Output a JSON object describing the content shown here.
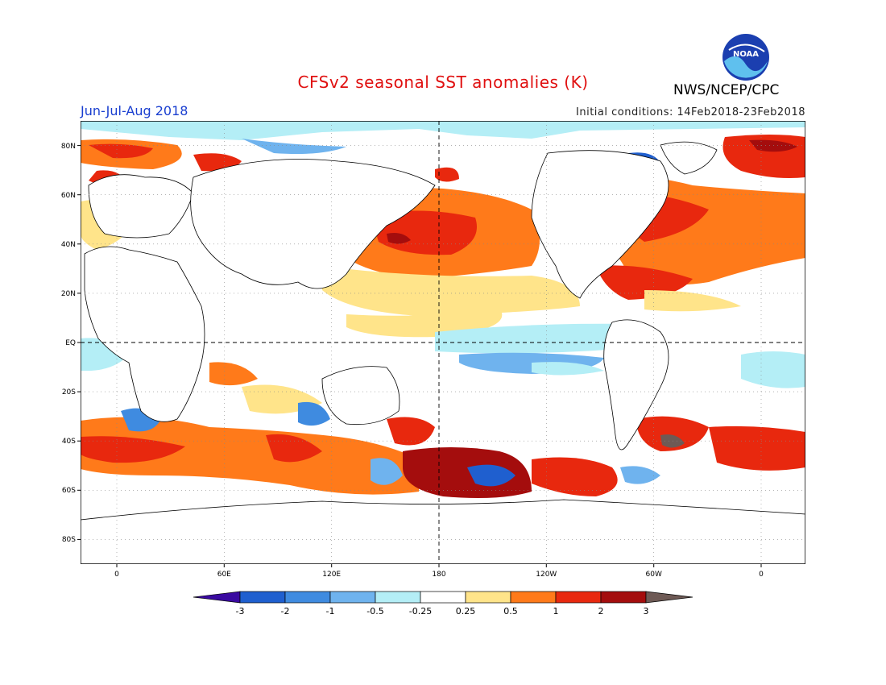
{
  "title": "CFSv2 seasonal SST anomalies (K)",
  "season": "Jun-Jul-Aug 2018",
  "initial_conditions": "Initial conditions: 14Feb2018-23Feb2018",
  "agency": "NWS/NCEP/CPC",
  "logo_text": "NOAA",
  "lat_labels": [
    "80N",
    "60N",
    "40N",
    "20N",
    "EQ",
    "20S",
    "40S",
    "60S",
    "80S"
  ],
  "lon_labels": [
    "0",
    "60E",
    "120E",
    "180",
    "120W",
    "60W",
    "0"
  ],
  "colorbar": {
    "ticks": [
      "-3",
      "-2",
      "-1",
      "-0.5",
      "-0.25",
      "0.25",
      "0.5",
      "1",
      "2",
      "3"
    ],
    "colors": [
      "#3a0aa0",
      "#1f5fcf",
      "#3f8be0",
      "#6fb3ee",
      "#b4eef6",
      "#ffffff",
      "#ffe48a",
      "#ff7a1a",
      "#e8280e",
      "#a40d0d",
      "#6e5a55"
    ]
  }
}
